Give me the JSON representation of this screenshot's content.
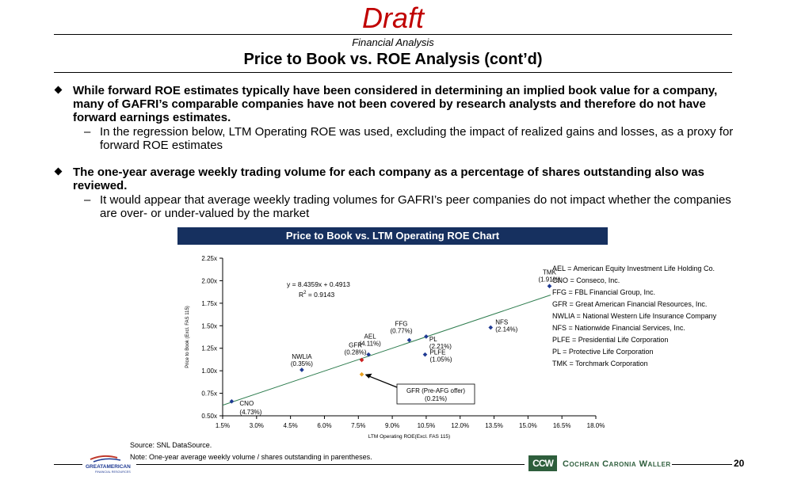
{
  "header": {
    "draft": "Draft",
    "subtitle": "Financial Analysis",
    "title": "Price to Book vs. ROE Analysis (cont’d)"
  },
  "bullets": [
    {
      "text": "While forward ROE estimates typically have been considered in determining an implied book value for a company, many of GAFRI’s comparable companies have not been covered by research analysts and therefore do not have forward earnings estimates.",
      "sub": "In the regression below, LTM Operating ROE was used, excluding the impact of realized gains and losses, as a proxy for forward ROE estimates"
    },
    {
      "text": "The one-year average weekly trading volume for each company as a percentage of shares outstanding also was reviewed.",
      "sub": "It would appear that average weekly trading volumes for GAFRI’s peer companies do not impact whether the companies are over- or under-valued by the market"
    }
  ],
  "dash": "–",
  "chart_header": "Price to Book vs. LTM Operating ROE Chart",
  "chart_data": {
    "type": "scatter",
    "xlabel": "LTM Operating ROE(Excl. FAS 115)",
    "ylabel": "Price to Book (Excl. FAS 115)",
    "xlim": [
      0.015,
      0.18
    ],
    "ylim": [
      0.5,
      2.25
    ],
    "x_ticks": [
      0.015,
      0.03,
      0.045,
      0.06,
      0.075,
      0.09,
      0.105,
      0.12,
      0.135,
      0.15,
      0.165,
      0.18
    ],
    "x_tick_labels": [
      "1.5%",
      "3.0%",
      "4.5%",
      "6.0%",
      "7.5%",
      "9.0%",
      "10.5%",
      "12.0%",
      "13.5%",
      "15.0%",
      "16.5%",
      "18.0%"
    ],
    "y_ticks": [
      0.5,
      0.75,
      1.0,
      1.25,
      1.5,
      1.75,
      2.0,
      2.25
    ],
    "y_tick_labels": [
      "0.50x",
      "0.75x",
      "1.00x",
      "1.25x",
      "1.50x",
      "1.75x",
      "2.00x",
      "2.25x"
    ],
    "equation": "y = 8.4359x + 0.4913",
    "r2_label": "R",
    "r2_sup": "2",
    "r2_value": " = 0.9143",
    "trendline": {
      "slope": 8.4359,
      "intercept": 0.4913,
      "x_range": [
        0.015,
        0.16
      ]
    },
    "points": [
      {
        "name": "CNO",
        "volume": "(4.73%)",
        "x": 0.019,
        "y": 0.66,
        "color": "#1f3a93"
      },
      {
        "name": "NWLIA",
        "volume": "(0.35%)",
        "x": 0.05,
        "y": 1.01,
        "color": "#1f3a93"
      },
      {
        "name": "GFR",
        "volume": "(0.28%)",
        "x": 0.0765,
        "y": 1.12,
        "color": "#cc2222"
      },
      {
        "name": "AEL",
        "volume": "(4.11%)",
        "x": 0.0795,
        "y": 1.18,
        "color": "#1f3a93"
      },
      {
        "name": "FFG",
        "volume": "(0.77%)",
        "x": 0.0975,
        "y": 1.34,
        "color": "#1f3a93"
      },
      {
        "name": "PL",
        "volume": "(2.21%)",
        "x": 0.105,
        "y": 1.38,
        "color": "#1f3a93"
      },
      {
        "name": "PLFE",
        "volume": "(1.05%)",
        "x": 0.1045,
        "y": 1.18,
        "color": "#1f3a93"
      },
      {
        "name": "NFS",
        "volume": "(2.14%)",
        "x": 0.1335,
        "y": 1.48,
        "color": "#1f3a93"
      },
      {
        "name": "TMK",
        "volume": "(1.91%)",
        "x": 0.1595,
        "y": 1.94,
        "color": "#1f3a93"
      },
      {
        "name": "GFR (Pre-AFG offer)",
        "volume": "(0.21%)",
        "x": 0.0765,
        "y": 0.96,
        "color": "#e8a020"
      }
    ],
    "colors": {
      "trendline": "#2e7d4f",
      "points": "#1f3a93",
      "gfr": "#cc2222",
      "gfr_pre": "#e8a020"
    }
  },
  "legend": [
    "AEL = American Equity Investment Life Holding Co.",
    "CNO = Conseco, Inc.",
    "FFG = FBL Financial Group, Inc.",
    "GFR = Great American Financial Resources, Inc.",
    "NWLIA = National Western Life Insurance Company",
    "NFS = Nationwide Financial Services, Inc.",
    "PLFE = Presidential Life Corporation",
    "PL = Protective Life Corporation",
    "TMK = Torchmark Corporation"
  ],
  "footer": {
    "source": "Source:  SNL DataSource.",
    "note": "Note: One-year average weekly volume / shares outstanding in parentheses.",
    "logo_left_line1": "GREATAMERICAN",
    "logo_left_line2": "FINANCIAL RESOURCES",
    "logo_right_mark": "CCW",
    "logo_right_text": "Cochran Caronia Waller",
    "page_number": "20"
  }
}
